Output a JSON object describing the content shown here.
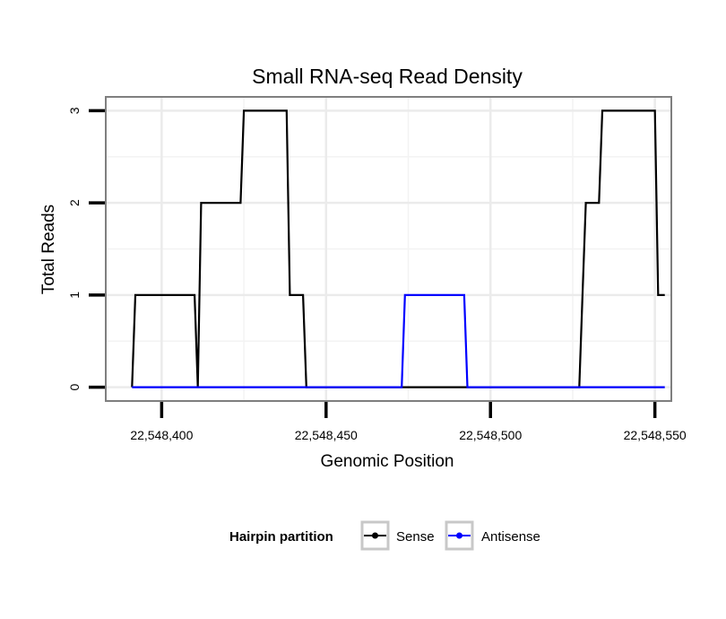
{
  "chart_data": {
    "type": "line",
    "title": "Small RNA-seq Read Density",
    "xlabel": "Genomic Position",
    "ylabel": "Total Reads",
    "xlim": [
      22548383,
      22548555
    ],
    "ylim": [
      -0.15,
      3.15
    ],
    "x_ticks": [
      22548400,
      22548450,
      22548500,
      22548550
    ],
    "x_tick_labels": [
      "22,548,400",
      "22,548,450",
      "22,548,500",
      "22,548,550"
    ],
    "y_ticks": [
      0,
      1,
      2,
      3
    ],
    "y_tick_labels": [
      "0",
      "1",
      "2",
      "3"
    ],
    "grid": true,
    "legend": {
      "title": "Hairpin partition",
      "position": "bottom"
    },
    "series": [
      {
        "name": "Sense",
        "color": "#000000",
        "x": [
          22548391,
          22548392,
          22548410,
          22548411,
          22548412,
          22548424,
          22548425,
          22548438,
          22548439,
          22548443,
          22548444,
          22548527,
          22548528,
          22548529,
          22548533,
          22548534,
          22548550,
          22548551,
          22548553
        ],
        "y": [
          0,
          1,
          1,
          0,
          2,
          2,
          3,
          3,
          1,
          1,
          0,
          0,
          1,
          2,
          2,
          3,
          3,
          1,
          1
        ]
      },
      {
        "name": "Antisense",
        "color": "#0000ff",
        "x": [
          22548391,
          22548473,
          22548474,
          22548492,
          22548493,
          22548553
        ],
        "y": [
          0,
          0,
          1,
          1,
          0,
          0
        ]
      }
    ]
  }
}
